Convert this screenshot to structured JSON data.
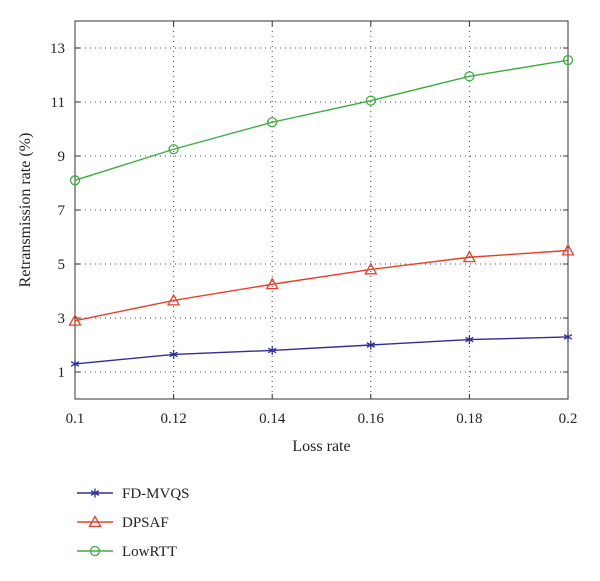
{
  "chart_data": {
    "type": "line",
    "title": "",
    "xlabel": "Loss rate",
    "ylabel": "Retransmission rate (%)",
    "x": [
      0.1,
      0.12,
      0.14,
      0.16,
      0.18,
      0.2
    ],
    "x_tick_labels": [
      "0.1",
      "0.12",
      "0.14",
      "0.16",
      "0.18",
      "0.2"
    ],
    "y_tick_values": [
      1,
      3,
      5,
      7,
      9,
      11,
      13
    ],
    "y_tick_labels": [
      "1",
      "3",
      "5",
      "7",
      "9",
      "11",
      "13"
    ],
    "xlim": [
      0.1,
      0.2
    ],
    "ylim": [
      0,
      14
    ],
    "grid": true,
    "grid_style": "dotted",
    "legend_position": "below",
    "series": [
      {
        "name": "FD-MVQS",
        "values": [
          1.3,
          1.65,
          1.8,
          2.0,
          2.2,
          2.3
        ],
        "color": "#2e2e9a",
        "marker": "asterisk"
      },
      {
        "name": "DPSAF",
        "values": [
          2.9,
          3.65,
          4.25,
          4.8,
          5.25,
          5.5
        ],
        "color": "#e8402a",
        "marker": "triangle"
      },
      {
        "name": "LowRTT",
        "values": [
          8.1,
          9.25,
          10.25,
          11.05,
          11.95,
          12.55
        ],
        "color": "#3cad3c",
        "marker": "circle"
      }
    ]
  }
}
